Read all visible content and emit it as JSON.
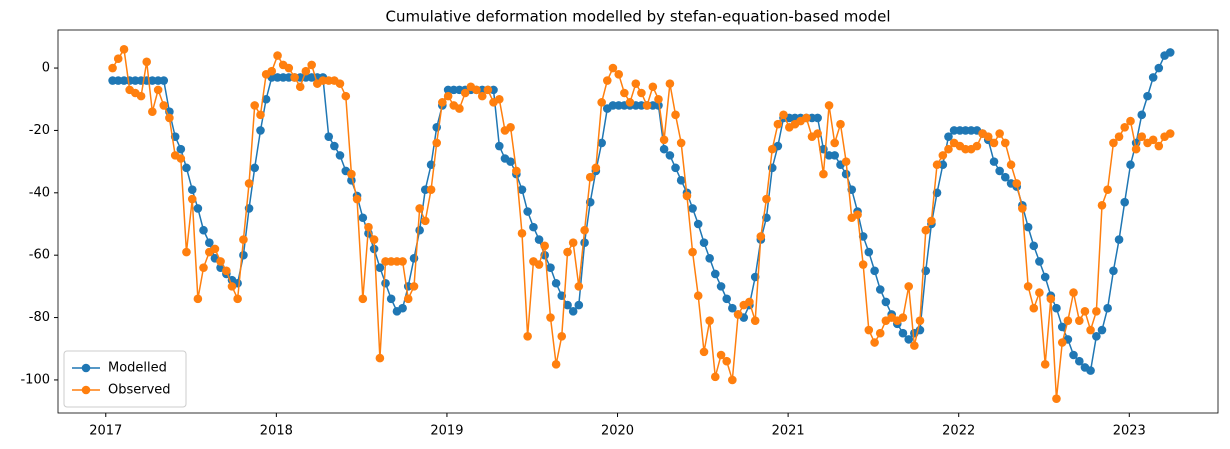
{
  "chart_data": {
    "type": "line",
    "title": "Cumulative deformation modelled by stefan-equation-based model",
    "x": [
      2017.04,
      2017.073,
      2017.107,
      2017.14,
      2017.173,
      2017.207,
      2017.24,
      2017.273,
      2017.307,
      2017.34,
      2017.373,
      2017.407,
      2017.44,
      2017.473,
      2017.507,
      2017.54,
      2017.573,
      2017.607,
      2017.64,
      2017.673,
      2017.707,
      2017.74,
      2017.773,
      2017.807,
      2017.84,
      2017.873,
      2017.907,
      2017.94,
      2017.973,
      2018.007,
      2018.04,
      2018.073,
      2018.107,
      2018.14,
      2018.173,
      2018.207,
      2018.24,
      2018.273,
      2018.307,
      2018.34,
      2018.373,
      2018.407,
      2018.44,
      2018.473,
      2018.507,
      2018.54,
      2018.573,
      2018.607,
      2018.64,
      2018.673,
      2018.707,
      2018.74,
      2018.773,
      2018.807,
      2018.84,
      2018.873,
      2018.907,
      2018.94,
      2018.973,
      2019.007,
      2019.04,
      2019.073,
      2019.107,
      2019.14,
      2019.173,
      2019.207,
      2019.24,
      2019.273,
      2019.307,
      2019.34,
      2019.373,
      2019.407,
      2019.44,
      2019.473,
      2019.507,
      2019.54,
      2019.573,
      2019.607,
      2019.64,
      2019.673,
      2019.707,
      2019.74,
      2019.773,
      2019.807,
      2019.84,
      2019.873,
      2019.907,
      2019.94,
      2019.973,
      2020.007,
      2020.04,
      2020.073,
      2020.107,
      2020.14,
      2020.173,
      2020.207,
      2020.24,
      2020.273,
      2020.307,
      2020.34,
      2020.373,
      2020.407,
      2020.44,
      2020.473,
      2020.507,
      2020.54,
      2020.573,
      2020.607,
      2020.64,
      2020.673,
      2020.707,
      2020.74,
      2020.773,
      2020.807,
      2020.84,
      2020.873,
      2020.907,
      2020.94,
      2020.973,
      2021.007,
      2021.04,
      2021.073,
      2021.107,
      2021.14,
      2021.173,
      2021.207,
      2021.24,
      2021.273,
      2021.307,
      2021.34,
      2021.373,
      2021.407,
      2021.44,
      2021.473,
      2021.507,
      2021.54,
      2021.573,
      2021.607,
      2021.64,
      2021.673,
      2021.707,
      2021.74,
      2021.773,
      2021.807,
      2021.84,
      2021.873,
      2021.907,
      2021.94,
      2021.973,
      2022.007,
      2022.04,
      2022.073,
      2022.107,
      2022.14,
      2022.173,
      2022.207,
      2022.24,
      2022.273,
      2022.307,
      2022.34,
      2022.373,
      2022.407,
      2022.44,
      2022.473,
      2022.507,
      2022.54,
      2022.573,
      2022.607,
      2022.64,
      2022.673,
      2022.707,
      2022.74,
      2022.773,
      2022.807,
      2022.84,
      2022.873,
      2022.907,
      2022.94,
      2022.973,
      2023.007,
      2023.04,
      2023.073,
      2023.107,
      2023.14,
      2023.173,
      2023.207,
      2023.24
    ],
    "series": [
      {
        "name": "Modelled",
        "color": "#1f77b4",
        "values": [
          -4,
          -4,
          -4,
          -4,
          -4,
          -4,
          -4,
          -4,
          -4,
          -4,
          -14,
          -22,
          -26,
          -32,
          -39,
          -45,
          -52,
          -56,
          -61,
          -64,
          -66,
          -68,
          -69,
          -60,
          -45,
          -32,
          -20,
          -10,
          -3,
          -3,
          -3,
          -3,
          -3,
          -3,
          -3,
          -3,
          -3,
          -3,
          -22,
          -25,
          -28,
          -33,
          -36,
          -41,
          -48,
          -53,
          -58,
          -64,
          -69,
          -74,
          -78,
          -77,
          -70,
          -61,
          -52,
          -39,
          -31,
          -19,
          -12,
          -7,
          -7,
          -7,
          -7,
          -7,
          -7,
          -7,
          -7,
          -7,
          -25,
          -29,
          -30,
          -34,
          -39,
          -46,
          -51,
          -55,
          -60,
          -64,
          -69,
          -73,
          -76,
          -78,
          -76,
          -56,
          -43,
          -33,
          -24,
          -13,
          -12,
          -12,
          -12,
          -12,
          -12,
          -12,
          -12,
          -12,
          -12,
          -26,
          -28,
          -32,
          -36,
          -40,
          -45,
          -50,
          -56,
          -61,
          -66,
          -70,
          -74,
          -77,
          -79,
          -80,
          -76,
          -67,
          -55,
          -48,
          -32,
          -25,
          -16,
          -16,
          -16,
          -16,
          -16,
          -16,
          -16,
          -26,
          -28,
          -28,
          -31,
          -34,
          -39,
          -46,
          -54,
          -59,
          -65,
          -71,
          -75,
          -79,
          -82,
          -85,
          -87,
          -85,
          -84,
          -65,
          -50,
          -40,
          -31,
          -22,
          -20,
          -20,
          -20,
          -20,
          -20,
          -21,
          -23,
          -30,
          -33,
          -35,
          -37,
          -38,
          -44,
          -51,
          -57,
          -62,
          -67,
          -73,
          -77,
          -83,
          -87,
          -92,
          -94,
          -96,
          -97,
          -86,
          -84,
          -77,
          -65,
          -55,
          -43,
          -31,
          -24,
          -15,
          -9,
          -3,
          0,
          4,
          5
        ]
      },
      {
        "name": "Observed",
        "color": "#ff7f0e",
        "values": [
          0,
          3,
          6,
          -7,
          -8,
          -9,
          2,
          -14,
          -7,
          -12,
          -16,
          -28,
          -29,
          -59,
          -42,
          -74,
          -64,
          -59,
          -58,
          -62,
          -65,
          -70,
          -74,
          -55,
          -37,
          -12,
          -15,
          -2,
          -1,
          4,
          1,
          0,
          -3,
          -6,
          -1,
          1,
          -5,
          -4,
          -4,
          -4,
          -5,
          -9,
          -34,
          -42,
          -74,
          -51,
          -55,
          -93,
          -62,
          -62,
          -62,
          -62,
          -74,
          -70,
          -45,
          -49,
          -39,
          -24,
          -11,
          -9,
          -12,
          -13,
          -8,
          -6,
          -7,
          -9,
          -7,
          -11,
          -10,
          -20,
          -19,
          -33,
          -53,
          -86,
          -62,
          -63,
          -57,
          -80,
          -95,
          -86,
          -59,
          -56,
          -70,
          -52,
          -35,
          -32,
          -11,
          -4,
          0,
          -2,
          -8,
          -11,
          -5,
          -8,
          -12,
          -6,
          -10,
          -23,
          -5,
          -15,
          -24,
          -41,
          -59,
          -73,
          -91,
          -81,
          -99,
          -92,
          -94,
          -100,
          -79,
          -76,
          -75,
          -81,
          -54,
          -42,
          -26,
          -18,
          -15,
          -19,
          -18,
          -17,
          -16,
          -22,
          -21,
          -34,
          -12,
          -24,
          -18,
          -30,
          -48,
          -47,
          -63,
          -84,
          -88,
          -85,
          -81,
          -80,
          -81,
          -80,
          -70,
          -89,
          -81,
          -52,
          -49,
          -31,
          -28,
          -26,
          -24,
          -25,
          -26,
          -26,
          -25,
          -21,
          -22,
          -24,
          -21,
          -24,
          -31,
          -37,
          -45,
          -70,
          -77,
          -72,
          -95,
          -74,
          -106,
          -88,
          -81,
          -72,
          -81,
          -78,
          -84,
          -78,
          -44,
          -39,
          -24,
          -22,
          -19,
          -17,
          -26,
          -22,
          -24,
          -23,
          -25,
          -22,
          -21
        ]
      }
    ],
    "xlim": [
      2016.72,
      2023.52
    ],
    "xticks": [
      2017,
      2018,
      2019,
      2020,
      2021,
      2022,
      2023
    ],
    "ylim": [
      -110.6,
      12.2
    ],
    "yticks": [
      -100,
      -80,
      -60,
      -40,
      -20,
      0
    ],
    "legend": "lower left"
  }
}
